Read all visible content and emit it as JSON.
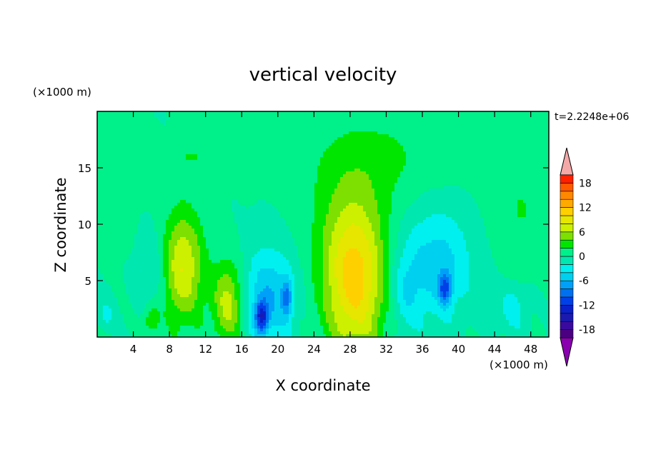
{
  "chart_data": {
    "type": "heatmap",
    "title": "vertical velocity",
    "xlabel": "X coordinate",
    "ylabel": "Z coordinate",
    "x_unit": "(×1000 m)",
    "y_unit": "(×1000 m)",
    "time_label": "t=2.2248e+06",
    "xlim": [
      0,
      50
    ],
    "ylim": [
      0,
      20
    ],
    "x_ticks": [
      4,
      8,
      12,
      16,
      20,
      24,
      28,
      32,
      36,
      40,
      44,
      48
    ],
    "y_ticks": [
      5,
      10,
      15
    ],
    "colorbar": {
      "levels": [
        -20,
        -18,
        -16,
        -14,
        -12,
        -10,
        -8,
        -6,
        -4,
        -2,
        0,
        2,
        4,
        6,
        8,
        10,
        12,
        14,
        16,
        18,
        20
      ],
      "colors": [
        "#4b0082",
        "#3a0aa0",
        "#1a1ab0",
        "#0a20c8",
        "#0040e8",
        "#0070f0",
        "#00a0f8",
        "#00d0f0",
        "#00f0f0",
        "#00e8b0",
        "#00f08a",
        "#00e600",
        "#7ee000",
        "#ccf000",
        "#e6e600",
        "#ffd000",
        "#ffaa00",
        "#ff8800",
        "#ff5a00",
        "#ff2000"
      ],
      "under_color": "#8a00b0",
      "over_color": "#f4a8a8",
      "tick_labels": [
        -18,
        -12,
        -6,
        0,
        6,
        12,
        18
      ]
    },
    "features": [
      {
        "x": 9.5,
        "z": 6.2,
        "sx": 1.6,
        "sz": 3.5,
        "a": 8
      },
      {
        "x": 14.5,
        "z": 3.0,
        "sx": 1.2,
        "sz": 2.6,
        "a": 7
      },
      {
        "x": 28.5,
        "z": 4.5,
        "sx": 2.4,
        "sz": 4.5,
        "a": 10
      },
      {
        "x": 28.0,
        "z": 10.0,
        "sx": 3.0,
        "sz": 4.0,
        "a": 3
      },
      {
        "x": 31.0,
        "z": 16.0,
        "sx": 6.0,
        "sz": 3.0,
        "a": 2.2
      },
      {
        "x": 10.5,
        "z": 16.0,
        "sx": 2.0,
        "sz": 0.8,
        "a": 2
      },
      {
        "x": 2.0,
        "z": 12.0,
        "sx": 1.5,
        "sz": 3.0,
        "a": 1.8
      },
      {
        "x": 47.0,
        "z": 11.5,
        "sx": 2.5,
        "sz": 4.0,
        "a": 2
      },
      {
        "x": 6.0,
        "z": 1.5,
        "sx": 0.6,
        "sz": 1.0,
        "a": 4
      },
      {
        "x": 6.0,
        "z": 6.0,
        "sx": 1.2,
        "sz": 2.5,
        "a": -2.5
      },
      {
        "x": 19.0,
        "z": 3.5,
        "sx": 2.0,
        "sz": 3.0,
        "a": -6
      },
      {
        "x": 18.2,
        "z": 1.8,
        "sx": 0.5,
        "sz": 1.0,
        "a": -10
      },
      {
        "x": 21.0,
        "z": 3.5,
        "sx": 0.4,
        "sz": 1.2,
        "a": -6
      },
      {
        "x": 37.5,
        "z": 6.5,
        "sx": 2.8,
        "sz": 3.5,
        "a": -5
      },
      {
        "x": 38.5,
        "z": 4.3,
        "sx": 0.5,
        "sz": 1.0,
        "a": -8
      },
      {
        "x": 34.0,
        "z": 4.0,
        "sx": 1.2,
        "sz": 2.5,
        "a": -3
      },
      {
        "x": 1.0,
        "z": 2.0,
        "sx": 0.6,
        "sz": 1.0,
        "a": -2.5
      },
      {
        "x": 46.0,
        "z": 2.5,
        "sx": 1.2,
        "sz": 1.5,
        "a": -3
      }
    ]
  }
}
